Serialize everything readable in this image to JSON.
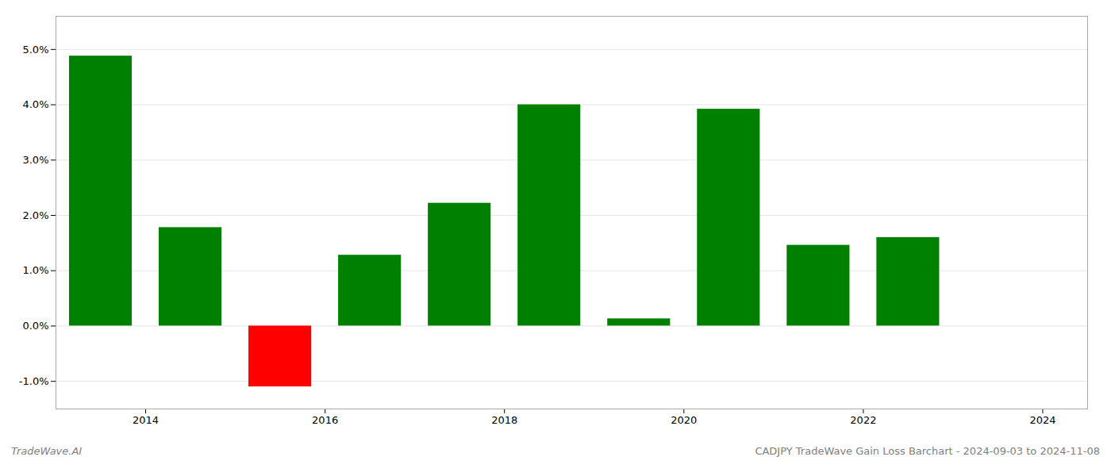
{
  "chart_data": {
    "type": "bar",
    "x": [
      2013.5,
      2014.5,
      2015.5,
      2016.5,
      2017.5,
      2018.5,
      2019.5,
      2020.5,
      2021.5,
      2022.5
    ],
    "values": [
      4.88,
      1.78,
      -1.1,
      1.28,
      2.22,
      4.0,
      0.13,
      3.92,
      1.46,
      1.6
    ],
    "colors": [
      "#008000",
      "#008000",
      "#ff0000",
      "#008000",
      "#008000",
      "#008000",
      "#008000",
      "#008000",
      "#008000",
      "#008000"
    ],
    "xlim": [
      2013.0,
      2024.5
    ],
    "xticks": [
      2014,
      2016,
      2018,
      2020,
      2022,
      2024
    ],
    "ylim": [
      -1.5,
      5.6
    ],
    "yticks": [
      {
        "value": -1.0,
        "label": "-1.0%"
      },
      {
        "value": 0.0,
        "label": "0.0%"
      },
      {
        "value": 1.0,
        "label": "1.0%"
      },
      {
        "value": 2.0,
        "label": "2.0%"
      },
      {
        "value": 3.0,
        "label": "3.0%"
      },
      {
        "value": 4.0,
        "label": "4.0%"
      },
      {
        "value": 5.0,
        "label": "5.0%"
      }
    ],
    "grid": true,
    "annotations": [
      "TradeWave.AI",
      "CADJPY TradeWave Gain Loss Barchart - 2024-09-03 to 2024-11-08"
    ]
  }
}
